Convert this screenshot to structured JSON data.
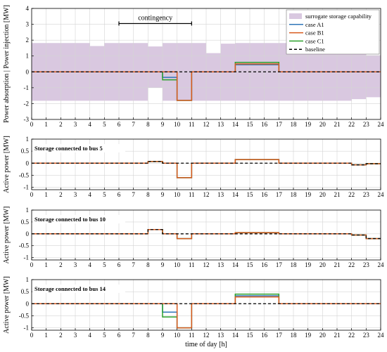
{
  "colors": {
    "band": "#d9c8e0",
    "case_a1": "#2f76b8",
    "case_b1": "#d95a1e",
    "case_c1": "#2ca02c",
    "baseline": "#000000",
    "grid": "#d4d4d4"
  },
  "xlabel": "time of day [h]",
  "xticks": [
    "0",
    "1",
    "2",
    "3",
    "4",
    "5",
    "6",
    "7",
    "8",
    "9",
    "10",
    "11",
    "12",
    "13",
    "14",
    "15",
    "16",
    "17",
    "18",
    "19",
    "20",
    "21",
    "22",
    "23",
    "24"
  ],
  "legend": {
    "band": "surrogate storage capability",
    "a1": "case A1",
    "b1": "case B1",
    "c1": "case C1",
    "baseline": "baseline"
  },
  "annotation": "contingency",
  "chart_data": [
    {
      "type": "line",
      "title": "",
      "ylabel": "Power absorption | Power injection [MW]",
      "ylim": [
        -3,
        4
      ],
      "yticks": [
        "-3",
        "-2",
        "-1",
        "0",
        "1",
        "2",
        "3",
        "4"
      ],
      "xlim": [
        0,
        24
      ],
      "grid": true,
      "legend_position": "top-right",
      "annotation": {
        "text": "contingency",
        "x_start": 6,
        "x_end": 11,
        "y": 3.05
      },
      "band": {
        "name": "surrogate storage capability",
        "step_x": [
          0,
          1,
          2,
          3,
          4,
          5,
          6,
          7,
          8,
          9,
          10,
          11,
          12,
          13,
          14,
          15,
          16,
          17,
          18,
          19,
          20,
          21,
          22,
          23,
          24
        ],
        "upper": [
          1.82,
          1.82,
          1.82,
          1.82,
          1.63,
          1.82,
          1.82,
          1.82,
          1.6,
          1.82,
          1.82,
          1.82,
          1.18,
          1.78,
          1.82,
          1.82,
          1.82,
          1.82,
          1.72,
          1.65,
          1.52,
          1.4,
          1.3,
          1.05
        ],
        "lower": [
          -1.82,
          -1.82,
          -1.82,
          -1.82,
          -1.82,
          -1.82,
          -1.82,
          -1.82,
          -1.0,
          -1.82,
          -1.82,
          -1.82,
          -1.82,
          -1.82,
          -1.82,
          -1.82,
          -1.82,
          -1.82,
          -1.82,
          -1.82,
          -1.82,
          -1.82,
          -1.72,
          -1.6
        ]
      },
      "series": [
        {
          "name": "case A1",
          "step_x": [
            0,
            9,
            10,
            11,
            14,
            17,
            24
          ],
          "values": [
            0,
            -0.35,
            -1.8,
            0,
            0.45,
            0,
            0
          ]
        },
        {
          "name": "case B1",
          "step_x": [
            0,
            9,
            10,
            11,
            14,
            17,
            24
          ],
          "values": [
            0,
            0,
            -1.8,
            0,
            0.5,
            0,
            0
          ]
        },
        {
          "name": "case C1",
          "step_x": [
            0,
            9,
            10,
            11,
            14,
            17,
            24
          ],
          "values": [
            0,
            -0.5,
            -1.8,
            0,
            0.6,
            0,
            0
          ]
        },
        {
          "name": "baseline",
          "step_x": [
            0,
            24
          ],
          "values": [
            0,
            0
          ]
        }
      ]
    },
    {
      "type": "line",
      "title": "Storage connected to bus 5",
      "ylabel": "Active power [MW]",
      "ylim": [
        -1.1,
        1
      ],
      "yticks": [
        "-1",
        "-0.5",
        "0",
        "0.5",
        "1"
      ],
      "xlim": [
        0,
        24
      ],
      "grid": true,
      "series": [
        {
          "name": "case A1",
          "step_x": [
            0,
            8,
            9,
            10,
            11,
            14,
            17,
            22,
            23,
            24
          ],
          "values": [
            0,
            0.07,
            0,
            -0.6,
            0,
            0.15,
            0,
            -0.07,
            -0.02,
            -0.02
          ]
        },
        {
          "name": "case B1",
          "step_x": [
            0,
            8,
            9,
            10,
            11,
            14,
            17,
            22,
            23,
            24
          ],
          "values": [
            0,
            0.07,
            0,
            -0.6,
            0,
            0.15,
            0,
            -0.07,
            -0.02,
            -0.02
          ]
        },
        {
          "name": "case C1",
          "step_x": [
            0,
            8,
            9,
            10,
            11,
            14,
            17,
            22,
            23,
            24
          ],
          "values": [
            0,
            0.07,
            0,
            -0.6,
            0,
            0.15,
            0,
            -0.07,
            -0.02,
            -0.02
          ]
        },
        {
          "name": "baseline",
          "step_x": [
            0,
            8,
            9,
            22,
            23,
            24
          ],
          "values": [
            0,
            0.07,
            0,
            -0.07,
            -0.02,
            -0.02
          ]
        }
      ]
    },
    {
      "type": "line",
      "title": "Storage connected to bus 10",
      "ylabel": "Active power [MW]",
      "ylim": [
        -1.1,
        1
      ],
      "yticks": [
        "-1",
        "-0.5",
        "0",
        "0.5",
        "1"
      ],
      "xlim": [
        0,
        24
      ],
      "grid": true,
      "series": [
        {
          "name": "case A1",
          "step_x": [
            0,
            8,
            9,
            10,
            11,
            14,
            17,
            22,
            23,
            24
          ],
          "values": [
            0,
            0.18,
            0,
            -0.2,
            0,
            0.05,
            0,
            -0.05,
            -0.2,
            -0.2
          ]
        },
        {
          "name": "case B1",
          "step_x": [
            0,
            8,
            9,
            10,
            11,
            14,
            17,
            22,
            23,
            24
          ],
          "values": [
            0,
            0.18,
            0,
            -0.2,
            0,
            0.05,
            0,
            -0.05,
            -0.2,
            -0.2
          ]
        },
        {
          "name": "case C1",
          "step_x": [
            0,
            8,
            9,
            10,
            11,
            14,
            17,
            22,
            23,
            24
          ],
          "values": [
            0,
            0.18,
            0,
            -0.2,
            0,
            0.05,
            0,
            -0.05,
            -0.2,
            -0.2
          ]
        },
        {
          "name": "baseline",
          "step_x": [
            0,
            8,
            9,
            22,
            23,
            24
          ],
          "values": [
            0,
            0.18,
            0,
            -0.05,
            -0.2,
            -0.2
          ]
        }
      ]
    },
    {
      "type": "line",
      "title": "Storage connected to bus 14",
      "ylabel": "Active power [MW]",
      "ylim": [
        -1.1,
        1
      ],
      "yticks": [
        "-1",
        "-0.5",
        "0",
        "0.5",
        "1"
      ],
      "xlim": [
        0,
        24
      ],
      "grid": true,
      "series": [
        {
          "name": "case A1",
          "step_x": [
            0,
            9,
            10,
            11,
            14,
            17,
            24
          ],
          "values": [
            0,
            -0.35,
            -1.0,
            0,
            0.33,
            0,
            0
          ]
        },
        {
          "name": "case B1",
          "step_x": [
            0,
            9,
            10,
            11,
            14,
            17,
            24
          ],
          "values": [
            0,
            0,
            -1.0,
            0,
            0.28,
            0,
            0
          ]
        },
        {
          "name": "case C1",
          "step_x": [
            0,
            9,
            10,
            11,
            14,
            17,
            24
          ],
          "values": [
            0,
            -0.55,
            -1.0,
            0,
            0.4,
            0,
            0
          ]
        },
        {
          "name": "baseline",
          "step_x": [
            0,
            24
          ],
          "values": [
            0,
            0
          ]
        }
      ]
    }
  ]
}
